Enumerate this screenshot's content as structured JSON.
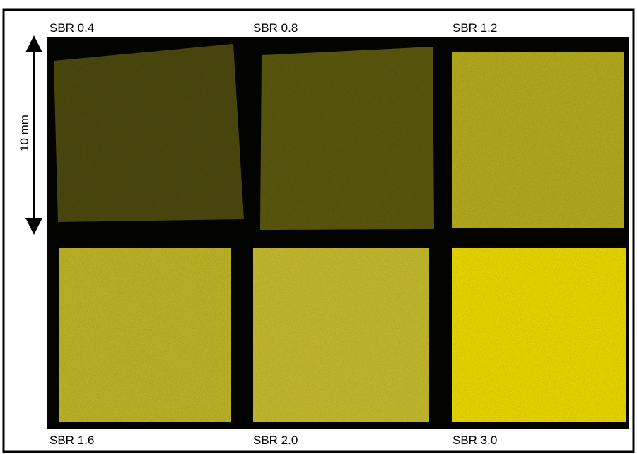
{
  "figure": {
    "top_labels": [
      "SBR 0.4",
      "SBR 0.8",
      "SBR 1.2"
    ],
    "bottom_labels": [
      "SBR 1.6",
      "SBR 2.0",
      "SBR 3.0"
    ],
    "scale_bar": "10 mm"
  }
}
